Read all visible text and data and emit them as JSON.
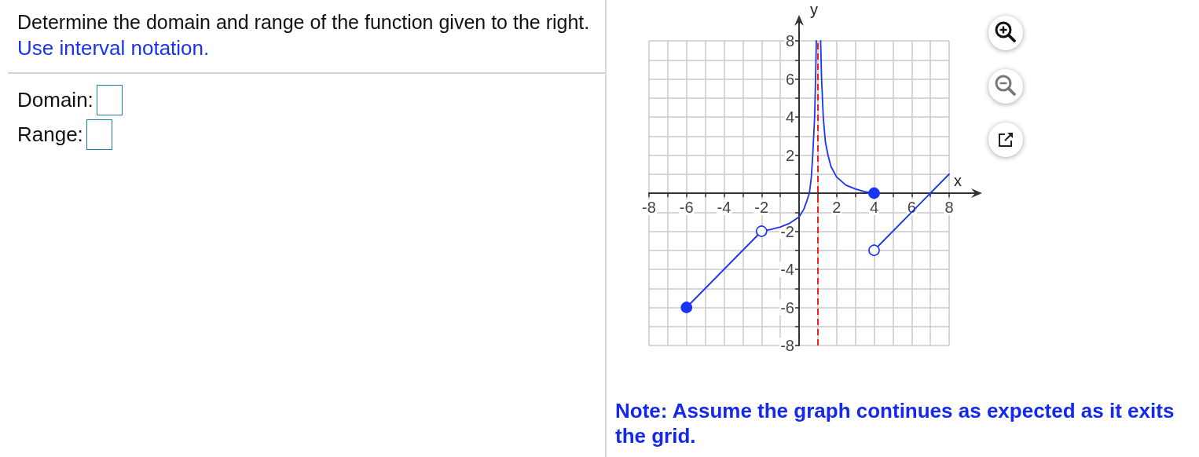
{
  "chart_data": {
    "type": "line",
    "title": "Determine the domain and range of the function given to the right.",
    "subtitle": "Use interval notation.",
    "xlabel": "x",
    "ylabel": "y",
    "annotations": [
      "Domain:",
      "Range:",
      "Note: Assume the graph continues as expected as it exits the grid."
    ],
    "series": [
      {
        "color": "#1a33f5",
        "x": [
          -6,
          -2
        ],
        "values": [
          -6,
          -2
        ]
      },
      {
        "color": "#1a33f5",
        "x": [
          -2,
          -1.5,
          -1,
          -0.5,
          0,
          0.25,
          0.4,
          0.55,
          0.65,
          0.73,
          0.83,
          0.88,
          0.92
        ],
        "values": [
          -2,
          -1.9,
          -1.78,
          -1.58,
          -1.25,
          -0.85,
          -0.45,
          0,
          0.8,
          2,
          4,
          6,
          8
        ]
      },
      {
        "color": "#1a33f5",
        "x": [
          1.15,
          1.2,
          1.29,
          1.4,
          1.54,
          1.7,
          2,
          2.5,
          3,
          3.5,
          4
        ],
        "values": [
          8,
          6,
          4,
          2.7,
          2,
          1.4,
          0.85,
          0.42,
          0.22,
          0.08,
          0
        ]
      },
      {
        "color": "#1a33f5",
        "x": [
          4,
          8
        ],
        "values": [
          -3,
          1
        ]
      },
      {
        "type": "scatter",
        "marker": "circle",
        "color": "#1a33f5",
        "x": [
          -6,
          4
        ],
        "values": [
          -6,
          0
        ]
      },
      {
        "type": "scatter",
        "marker": "circle",
        "color": "#ffffff",
        "x": [
          -2,
          4
        ],
        "values": [
          -2,
          -3
        ]
      }
    ],
    "marker": "none",
    "line_style": "solid",
    "grid": true,
    "xlim": [
      -8,
      8
    ],
    "ylim": [
      -8,
      8
    ],
    "xticks": [
      -8,
      {
        "value": -7,
        "label": null
      },
      -6,
      {
        "value": -5,
        "label": null
      },
      -4,
      {
        "value": -3,
        "label": null
      },
      -2,
      {
        "value": -1,
        "label": null
      },
      {
        "value": 0,
        "label": null
      },
      {
        "value": 1,
        "label": null
      },
      2,
      {
        "value": 3,
        "label": null
      },
      4,
      {
        "value": 5,
        "label": null
      },
      6,
      {
        "value": 7,
        "label": null
      },
      8
    ],
    "yticks": [
      -8,
      {
        "value": -7,
        "label": null
      },
      -6,
      {
        "value": -5,
        "label": null
      },
      -4,
      {
        "value": -3,
        "label": null
      },
      -2,
      {
        "value": -1,
        "label": null
      },
      {
        "value": 0,
        "label": null
      },
      {
        "value": 1,
        "label": null
      },
      2,
      {
        "value": 3,
        "label": null
      },
      4,
      {
        "value": 5,
        "label": null
      },
      6,
      {
        "value": 7,
        "label": null
      },
      8
    ],
    "ref_lines": [
      {
        "axis": "x",
        "value": 1,
        "color": "#ff1a1a",
        "line_style": "dashed"
      }
    ]
  }
}
